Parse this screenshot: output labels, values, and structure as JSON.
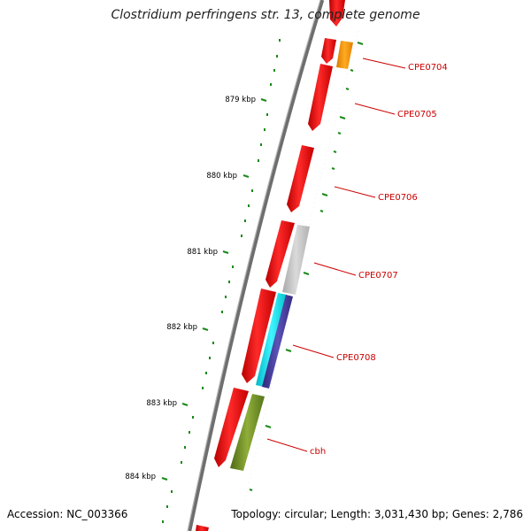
{
  "title": "Clostridium perfringens str. 13, complete genome",
  "footer": {
    "accession": "Accession: NC_003366",
    "topology": "Topology: circular; Length: 3,031,430 bp; Genes: 2,786"
  },
  "ruler_labels": [
    "879 kbp",
    "880 kbp",
    "881 kbp",
    "882 kbp",
    "883 kbp",
    "884 kbp"
  ],
  "gene_labels": [
    "CPE0704",
    "CPE0705",
    "CPE0706",
    "CPE0707",
    "CPE0708",
    "cbh"
  ],
  "colors": {
    "backbone": "#7a7a7a",
    "gene_red": "#ee0000",
    "orange": "#ff9900",
    "gray": "#c0c0c0",
    "cyan": "#00e5ee",
    "navy": "#4a3f9a",
    "olive": "#6b8e23",
    "tick_green": "#1a8a1a",
    "label_red": "#cc0000"
  }
}
